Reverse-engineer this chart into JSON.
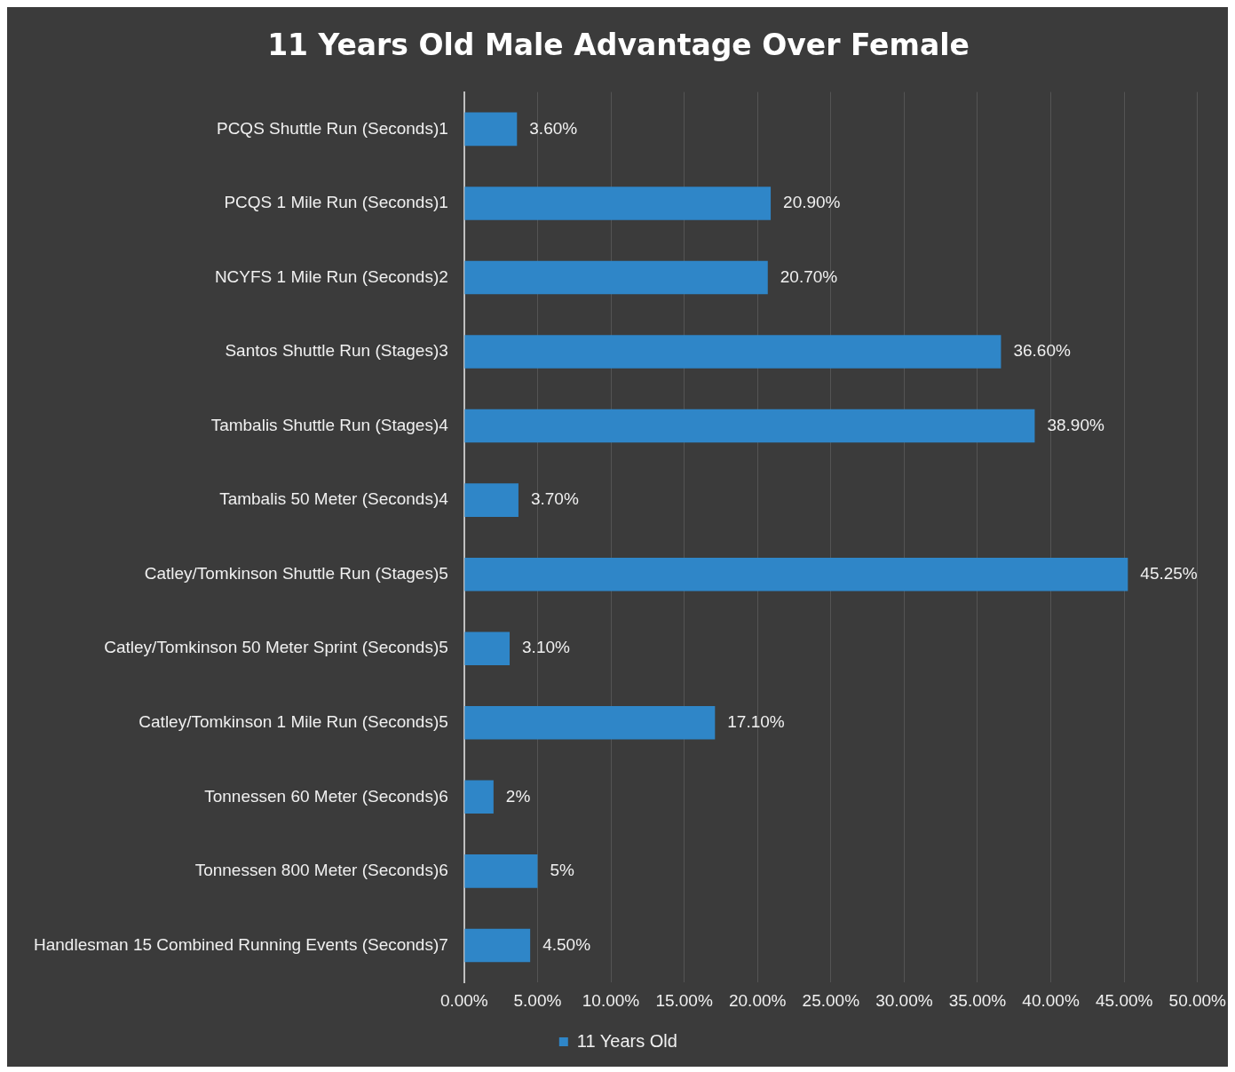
{
  "chart_data": {
    "type": "bar",
    "orientation": "horizontal",
    "title": "11 Years Old Male Advantage Over Female",
    "categories": [
      "PCQS Shuttle Run (Seconds)1",
      "PCQS 1 Mile Run (Seconds)1",
      "NCYFS 1 Mile Run (Seconds)2",
      "Santos Shuttle Run (Stages)3",
      "Tambalis Shuttle Run (Stages)4",
      "Tambalis 50 Meter (Seconds)4",
      "Catley/Tomkinson Shuttle Run (Stages)5",
      "Catley/Tomkinson 50 Meter Sprint (Seconds)5",
      "Catley/Tomkinson 1 Mile Run (Seconds)5",
      "Tonnessen 60 Meter (Seconds)6",
      "Tonnessen 800 Meter (Seconds)6",
      "Handlesman 15 Combined Running Events (Seconds)7"
    ],
    "series": [
      {
        "name": "11 Years Old",
        "color": "#2f86c8",
        "values": [
          3.6,
          20.9,
          20.7,
          36.6,
          38.9,
          3.7,
          45.25,
          3.1,
          17.1,
          2,
          5,
          4.5
        ],
        "value_labels": [
          "3.60%",
          "20.90%",
          "20.70%",
          "36.60%",
          "38.90%",
          "3.70%",
          "45.25%",
          "3.10%",
          "17.10%",
          "2%",
          "5%",
          "4.50%"
        ]
      }
    ],
    "xlim": [
      0,
      50
    ],
    "xticks": [
      {
        "value": 0,
        "label": "0.00%"
      },
      {
        "value": 5,
        "label": "5.00%"
      },
      {
        "value": 10,
        "label": "10.00%"
      },
      {
        "value": 15,
        "label": "15.00%"
      },
      {
        "value": 20,
        "label": "20.00%"
      },
      {
        "value": 25,
        "label": "25.00%"
      },
      {
        "value": 30,
        "label": "30.00%"
      },
      {
        "value": 35,
        "label": "35.00%"
      },
      {
        "value": 40,
        "label": "40.00%"
      },
      {
        "value": 45,
        "label": "45.00%"
      },
      {
        "value": 50,
        "label": "50.00%"
      }
    ],
    "grid": "x",
    "legend": "bottom"
  }
}
